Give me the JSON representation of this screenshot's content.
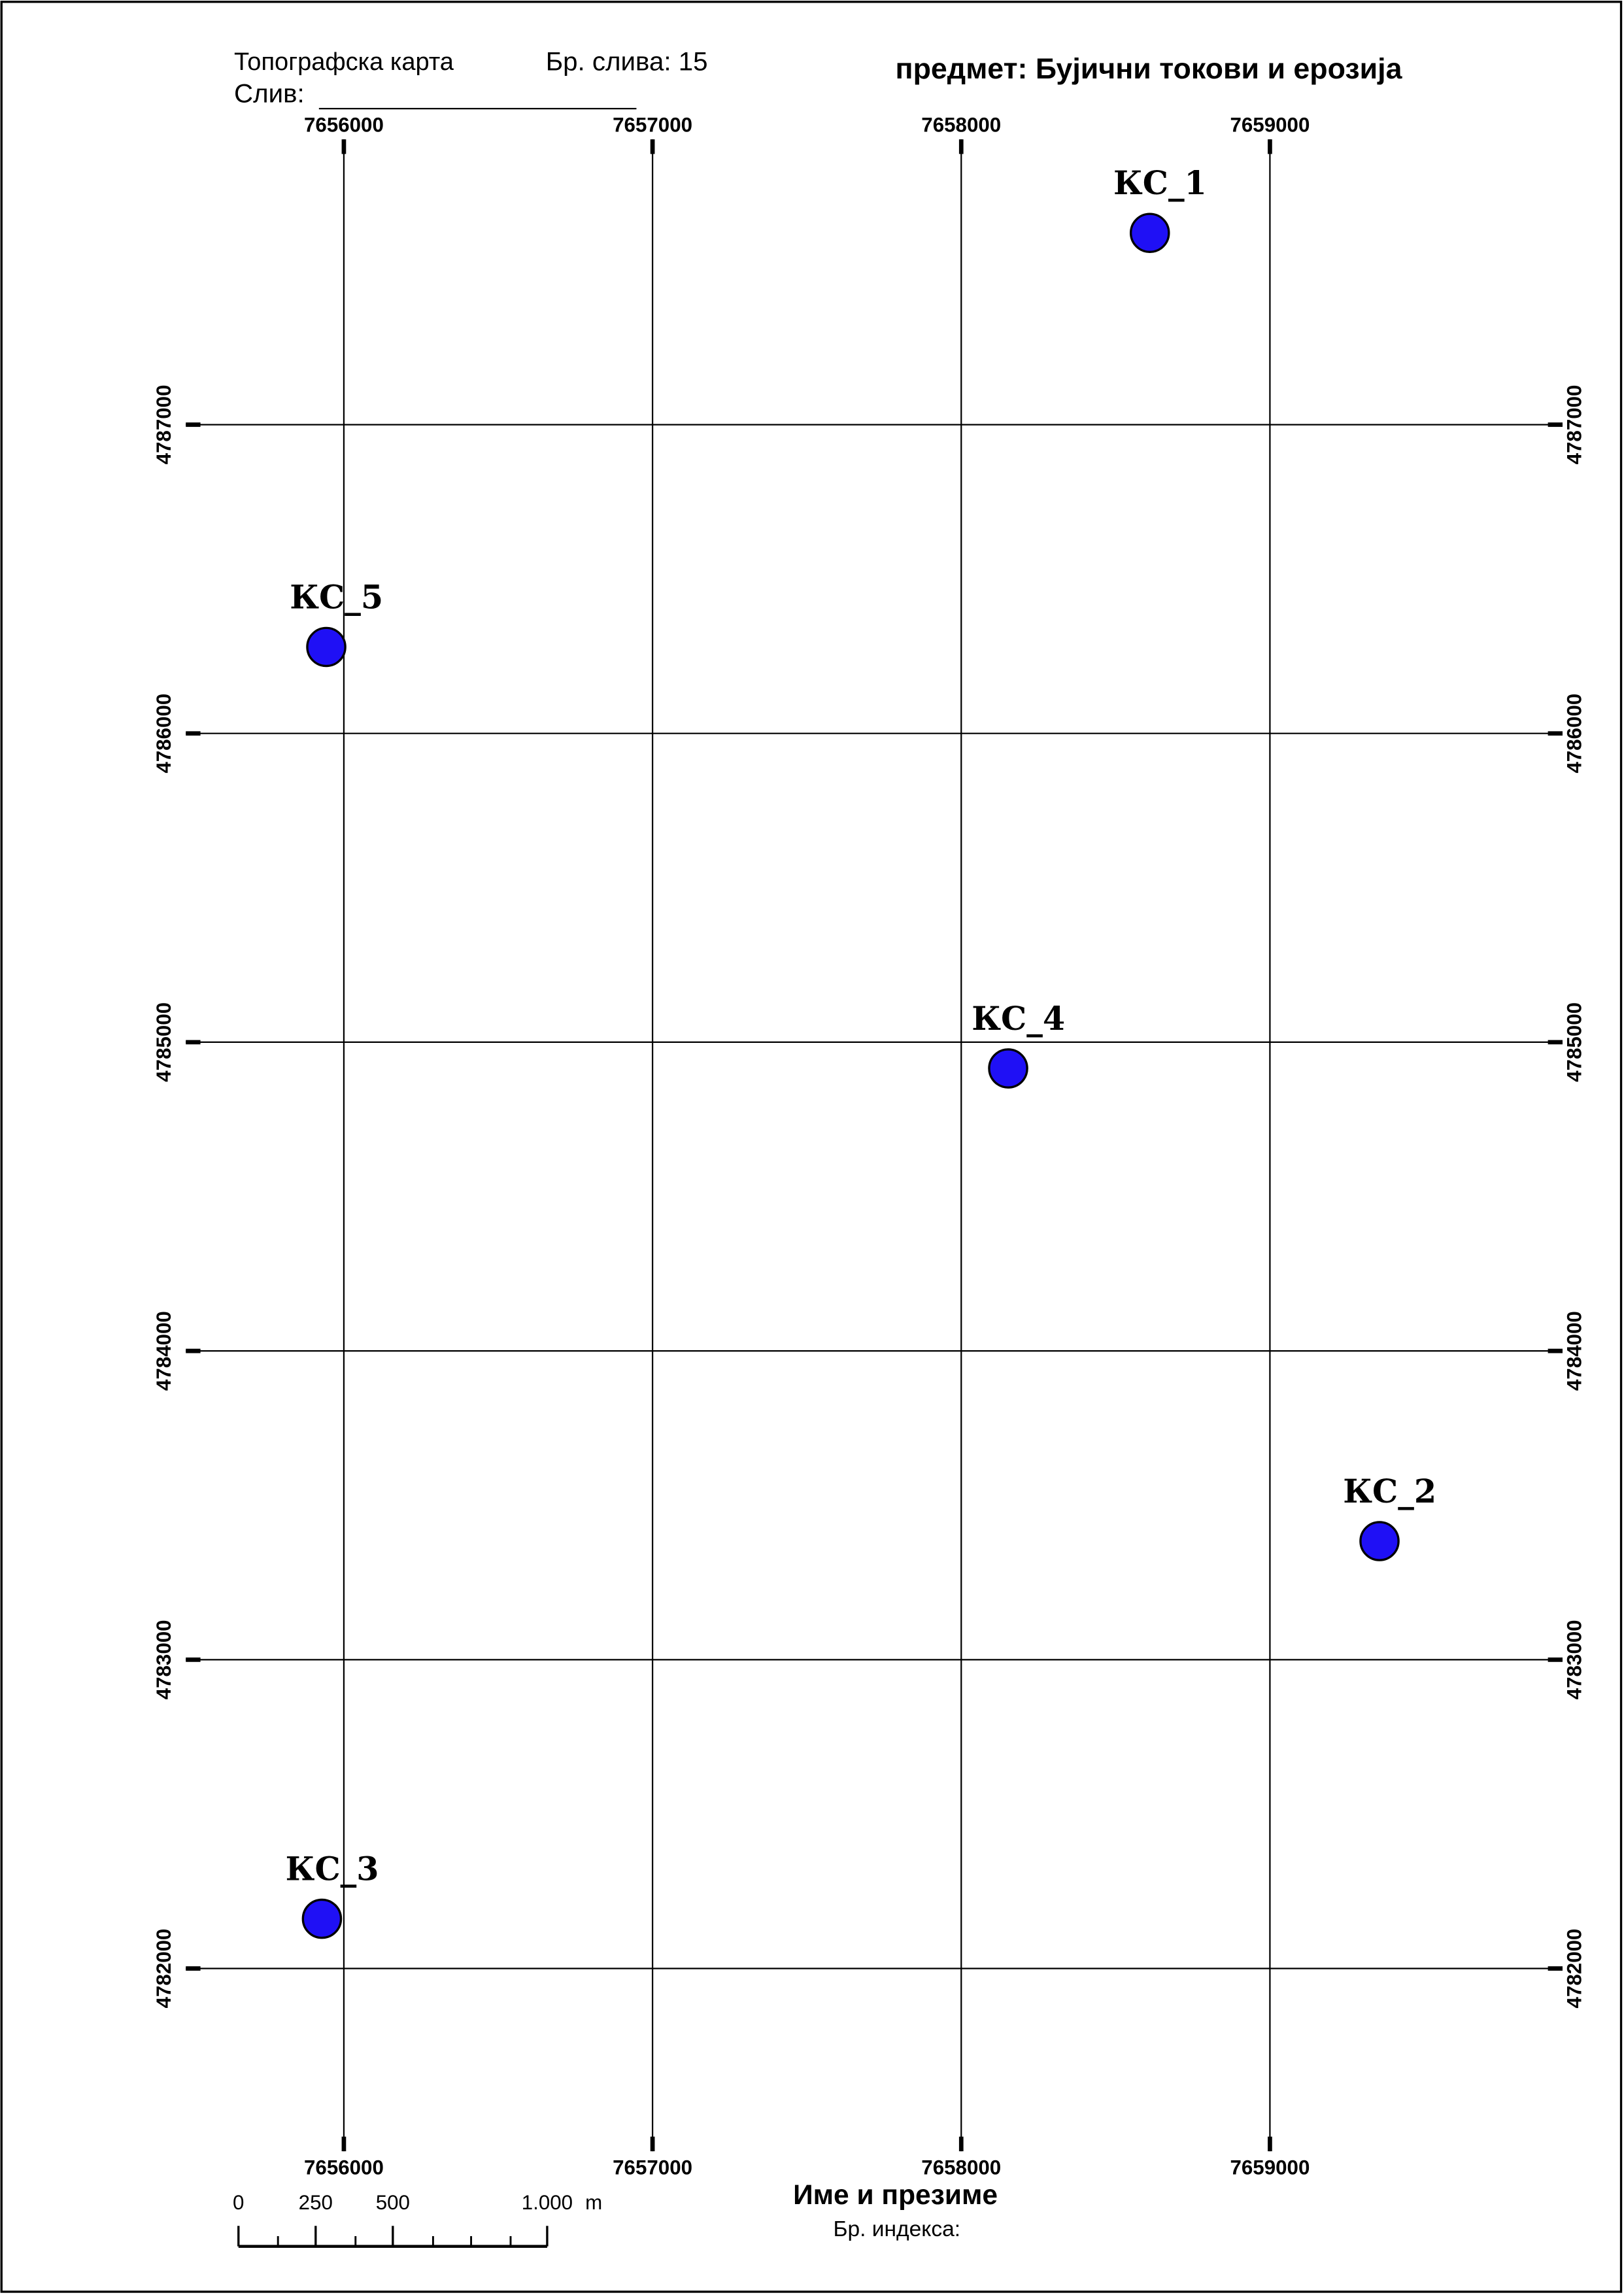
{
  "header": {
    "map_type": "Топографска карта",
    "basin_no": "Бр. слива: 15",
    "basin": "Слив:",
    "subject": "предмет: Бујични токови и ерозија"
  },
  "map": {
    "type": "map",
    "xlim": [
      7655488,
      7659948
    ],
    "ylim": [
      4781408,
      4787924
    ],
    "xticks": [
      7656000,
      7657000,
      7658000,
      7659000
    ],
    "yticks": [
      4782000,
      4783000,
      4784000,
      4785000,
      4786000,
      4787000
    ],
    "point_color": "#1f10f5",
    "points": [
      {
        "label": "КС_1",
        "x": 7658611,
        "y": 4787621
      },
      {
        "label": "КС_2",
        "x": 7659355,
        "y": 4783384
      },
      {
        "label": "КС_3",
        "x": 7655929,
        "y": 4782161
      },
      {
        "label": "КС_4",
        "x": 7658152,
        "y": 4784915
      },
      {
        "label": "КС_5",
        "x": 7655943,
        "y": 4786280
      }
    ],
    "scale_bar": {
      "ticks": [
        0,
        250,
        500,
        {
          "value": 1000,
          "label": "1.000"
        }
      ],
      "unit": "m"
    }
  },
  "footer": {
    "name": "Име и презиме",
    "index": "Бр. индекса:"
  }
}
